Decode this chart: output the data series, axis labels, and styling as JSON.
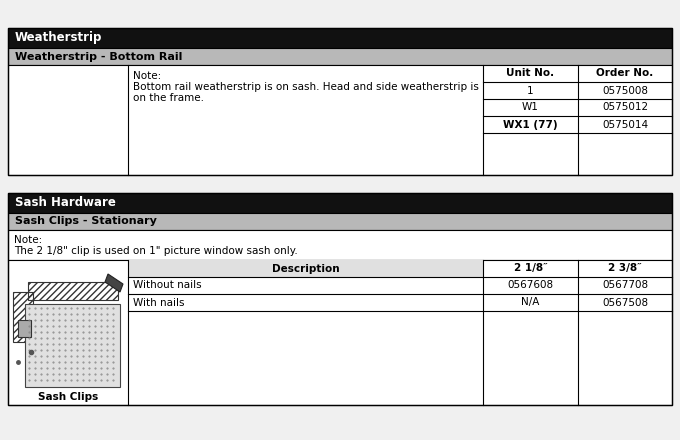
{
  "fig_width": 6.8,
  "fig_height": 4.4,
  "dpi": 100,
  "bg_color": "#f0f0f0",
  "header_bg": "#111111",
  "header_fg": "#ffffff",
  "subheader_bg": "#b8b8b8",
  "subheader_fg": "#000000",
  "cell_bg": "#ffffff",
  "border_color": "#000000",
  "section1": {
    "header": "Weatherstrip",
    "subheader": "Weatherstrip - Bottom Rail",
    "note_line1": "Note:",
    "note_line2": "Bottom rail weatherstrip is on sash. Head and side weatherstrip is",
    "note_line3": "on the frame.",
    "col1_header": "Unit No.",
    "col2_header": "Order No.",
    "rows": [
      [
        "1",
        "0575008"
      ],
      [
        "W1",
        "0575012"
      ],
      [
        "WX1 (77)",
        "0575014"
      ]
    ],
    "bold_row": 2
  },
  "section2": {
    "header": "Sash Hardware",
    "subheader": "Sash Clips - Stationary",
    "note_line1": "Note:",
    "note_line2": "The 2 1/8\" clip is used on 1\" picture window sash only.",
    "col_desc": "Description",
    "col_size1": "2 1/8″",
    "col_size2": "2 3/8″",
    "rows": [
      [
        "Without nails",
        "0567608",
        "0567708"
      ],
      [
        "With nails",
        "N/A",
        "0567508"
      ]
    ],
    "image_label": "Sash Clips"
  }
}
